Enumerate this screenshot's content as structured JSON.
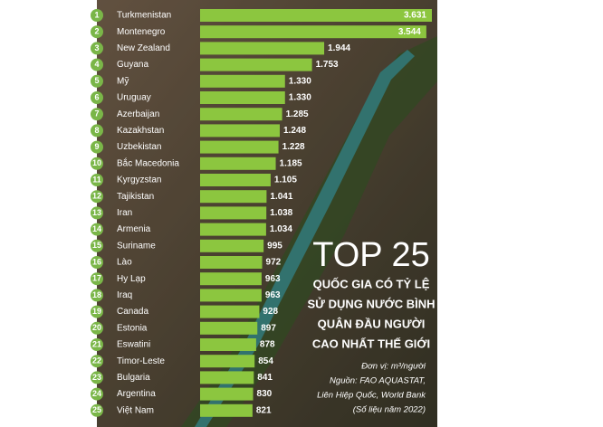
{
  "chart_data": {
    "type": "bar",
    "orientation": "horizontal",
    "title": "TOP 25",
    "subtitle": [
      "QUỐC GIA CÓ TỶ LỆ",
      "SỬ DỤNG NƯỚC BÌNH",
      "QUÂN ĐẦU NGƯỜI",
      "CAO NHẤT THẾ GIỚI"
    ],
    "notes": [
      "Đơn vị: m³/người",
      "Nguồn: FAO AQUASTAT,",
      "Liên Hiệp Quốc, World Bank",
      "(Số liệu năm 2022)"
    ],
    "ranks": [
      1,
      2,
      3,
      4,
      5,
      6,
      7,
      8,
      9,
      10,
      11,
      12,
      13,
      14,
      15,
      16,
      17,
      18,
      19,
      20,
      21,
      22,
      23,
      24,
      25
    ],
    "categories": [
      "Turkmenistan",
      "Montenegro",
      "New Zealand",
      "Guyana",
      "Mỹ",
      "Uruguay",
      "Azerbaijan",
      "Kazakhstan",
      "Uzbekistan",
      "Bắc Macedonia",
      "Kyrgyzstan",
      "Tajikistan",
      "Iran",
      "Armenia",
      "Suriname",
      "Lào",
      "Hy Lạp",
      "Iraq",
      "Canada",
      "Estonia",
      "Eswatini",
      "Timor-Leste",
      "Bulgaria",
      "Argentina",
      "Việt Nam"
    ],
    "values": [
      3631,
      3544,
      1944,
      1753,
      1330,
      1330,
      1285,
      1248,
      1228,
      1185,
      1105,
      1041,
      1038,
      1034,
      995,
      972,
      963,
      963,
      928,
      897,
      878,
      854,
      841,
      830,
      821
    ],
    "value_labels": [
      "3.631",
      "3.544",
      "1.944",
      "1.753",
      "1.330",
      "1.330",
      "1.285",
      "1.248",
      "1.228",
      "1.185",
      "1.105",
      "1.041",
      "1.038",
      "1.034",
      "995",
      "972",
      "963",
      "963",
      "928",
      "897",
      "878",
      "854",
      "841",
      "830",
      "821"
    ],
    "color": "#8cc63f"
  }
}
